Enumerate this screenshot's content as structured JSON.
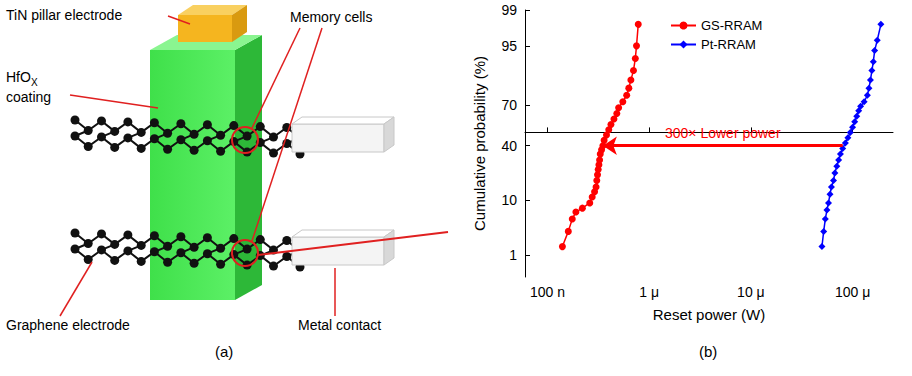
{
  "figure": {
    "captions": [
      "(a)",
      "(b)"
    ],
    "diagram": {
      "labels": {
        "tin": "TiN pillar electrode",
        "memory": "Memory cells",
        "hfox": "HfO",
        "hfox_sub": "X",
        "coating": "coating",
        "graphene": "Graphene electrode",
        "metal": "Metal contact"
      }
    }
  },
  "chart_data": {
    "type": "line",
    "x_label": "Reset power (W)",
    "y_label": "Cumulative probability (%)",
    "log": "x",
    "grid": false,
    "legend": "top",
    "xlim": [
      6e-08,
      0.00025
    ],
    "xticks": [
      {
        "value": 1e-07,
        "label": "100 n"
      },
      {
        "value": 1e-06,
        "label": "1 μ"
      },
      {
        "value": 1e-05,
        "label": "10 μ"
      },
      {
        "value": 0.0001,
        "label": "100 μ"
      }
    ],
    "ylim": [
      0.3,
      99
    ],
    "yticks": [
      1,
      10,
      40,
      70,
      95,
      99
    ],
    "series": [
      {
        "name": "GS-RRAM",
        "color": "#ff0000",
        "marker": "circle",
        "line_style": "solid",
        "x": [
          1.4e-07,
          1.6e-07,
          1.75e-07,
          1.9e-07,
          2.2e-07,
          2.6e-07,
          2.75e-07,
          2.9e-07,
          3e-07,
          3.05e-07,
          3.1e-07,
          3.15e-07,
          3.2e-07,
          3.25e-07,
          3.3e-07,
          3.4e-07,
          3.5e-07,
          3.6e-07,
          3.8e-07,
          4e-07,
          4.2e-07,
          4.5e-07,
          4.8e-07,
          5e-07,
          5.5e-07,
          6e-07,
          6.3e-07,
          6.6e-07,
          7e-07,
          7.3e-07,
          7.5e-07,
          7.8e-07
        ],
        "values": [
          1.5,
          3,
          5,
          6.5,
          7.5,
          9,
          11,
          13,
          15,
          18,
          21,
          24,
          27,
          30,
          34,
          37,
          40,
          44,
          48,
          52,
          56,
          60,
          64,
          68,
          72,
          76,
          80,
          84,
          88,
          92,
          95,
          98
        ]
      },
      {
        "name": "Pt-RRAM",
        "color": "#0000ff",
        "marker": "diamond",
        "line_style": "solid",
        "x": [
          5e-05,
          5.2e-05,
          5.4e-05,
          5.6e-05,
          5.8e-05,
          6e-05,
          6.2e-05,
          6.5e-05,
          6.7e-05,
          7e-05,
          7.3e-05,
          7.6e-05,
          8e-05,
          8.5e-05,
          9e-05,
          9.5e-05,
          0.0001,
          0.000105,
          0.00011,
          0.000115,
          0.00012,
          0.00013,
          0.00014,
          0.000145,
          0.00015,
          0.000155,
          0.00016,
          0.000165,
          0.000175,
          0.00019
        ],
        "values": [
          1.5,
          3,
          5,
          7,
          9,
          12,
          15,
          18,
          22,
          26,
          30,
          34,
          38,
          42,
          46,
          50,
          54,
          58,
          62,
          66,
          69,
          72,
          76,
          80,
          84,
          88,
          91,
          94,
          96,
          98
        ]
      }
    ],
    "annotations": [
      {
        "text": "300× Lower power",
        "color": "#ff0000",
        "from": [
          8e-05,
          40
        ],
        "to": [
          3.5e-07,
          40
        ]
      }
    ]
  }
}
